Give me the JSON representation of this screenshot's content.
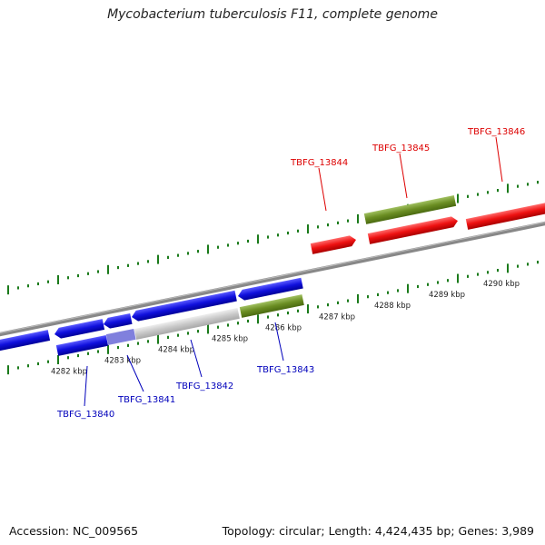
{
  "title": "Mycobacterium tuberculosis F11, complete genome",
  "footer": {
    "accession": "Accession: NC_009565",
    "topology": "Topology: circular; Length: 4,424,435 bp; Genes: 3,989"
  },
  "scale_labels": [
    "4282 kbp",
    "4283 kbp",
    "4284 kbp",
    "4285 kbp",
    "4286 kbp",
    "4287 kbp",
    "4288 kbp",
    "4289 kbp",
    "4290 kbp"
  ],
  "gene_labels": {
    "forward": [
      "TBFG_13844",
      "TBFG_13845",
      "TBFG_13846"
    ],
    "reverse": [
      "TBFG_13840",
      "TBFG_13841",
      "TBFG_13842",
      "TBFG_13843"
    ]
  },
  "colors": {
    "forward_gene": "#ee1111",
    "reverse_gene": "#1010dd",
    "rna_gene": "#6b8e23",
    "pseudo_gene": "#c8c8c8",
    "overlap": "#8080dd",
    "backbone": "#888888",
    "tick": "#1a7a1a",
    "forward_label_line": "#dd0000",
    "reverse_label_line": "#0000bb"
  }
}
